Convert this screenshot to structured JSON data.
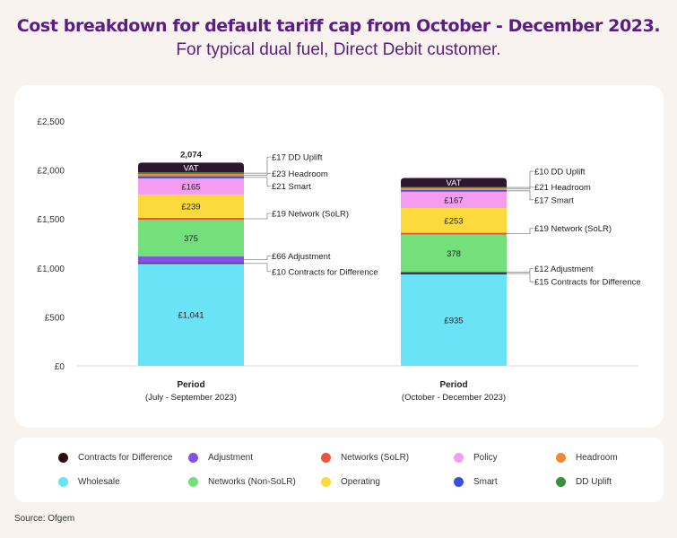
{
  "header": {
    "title": "Cost breakdown for default tariff cap from October - December 2023.",
    "subtitle": "For typical dual fuel, Direct Debit customer."
  },
  "chart_data": {
    "type": "bar",
    "stacked": true,
    "title": "Cost breakdown for default tariff cap from October - December 2023.",
    "subtitle": "For typical dual fuel, Direct Debit customer.",
    "ylim": [
      0,
      2500
    ],
    "yticks": [
      0,
      500,
      1000,
      1500,
      2000,
      2500
    ],
    "ytick_labels": [
      "£0",
      "£500",
      "£1,000",
      "£1,500",
      "£2,000",
      "£2,500"
    ],
    "grid": false,
    "legend_position": "bottom",
    "categories": [
      {
        "label": "Period",
        "sublabel": "(July - September 2023)",
        "total_label": "2,074"
      },
      {
        "label": "Period",
        "sublabel": "(October - December 2023)",
        "total_label": ""
      }
    ],
    "series": [
      {
        "name": "Wholesale",
        "color": "#6be3f7",
        "values": [
          1041,
          935
        ],
        "inner_labels": [
          "£1,041",
          "£935"
        ]
      },
      {
        "name": "Contracts for Difference",
        "color": "#2a0f12",
        "values": [
          10,
          15
        ],
        "callouts": [
          "£10 Contracts for Difference",
          "£15 Contracts for Difference"
        ]
      },
      {
        "name": "Adjustment",
        "color": "#8352e0",
        "values": [
          66,
          12
        ],
        "callouts": [
          "£66 Adjustment",
          "£12 Adjustment"
        ]
      },
      {
        "name": "Networks (Non-SoLR)",
        "color": "#74e07c",
        "values": [
          375,
          378
        ],
        "inner_labels": [
          "375",
          "378"
        ]
      },
      {
        "name": "Networks (SoLR)",
        "color": "#e8553c",
        "values": [
          19,
          19
        ],
        "callouts": [
          "£19 Network (SoLR)",
          "£19 Network (SoLR)"
        ]
      },
      {
        "name": "Operating",
        "color": "#fcd93c",
        "values": [
          239,
          253
        ],
        "inner_labels": [
          "£239",
          "£253"
        ]
      },
      {
        "name": "Policy",
        "color": "#f39cf0",
        "values": [
          165,
          167
        ],
        "inner_labels": [
          "£165",
          "£167"
        ]
      },
      {
        "name": "Smart",
        "color": "#3a4fd6",
        "values": [
          21,
          17
        ],
        "callouts": [
          "£21 Smart",
          "£17 Smart"
        ]
      },
      {
        "name": "Headroom",
        "color": "#f5872e",
        "values": [
          23,
          21
        ],
        "callouts": [
          "£23 Headroom",
          "£21 Headroom"
        ]
      },
      {
        "name": "DD Uplift",
        "color": "#3a8f3a",
        "values": [
          17,
          10
        ],
        "callouts": [
          "£17 DD Uplift",
          "£10 DD Uplift"
        ]
      },
      {
        "name": "VAT",
        "color": "#2e1532",
        "values": [
          99,
          91
        ],
        "inner_labels": [
          "VAT",
          "VAT"
        ]
      }
    ]
  },
  "legend": {
    "items": [
      {
        "label": "Contracts for Difference",
        "color": "#2a0f12"
      },
      {
        "label": "Adjustment",
        "color": "#8352e0"
      },
      {
        "label": "Networks (SoLR)",
        "color": "#e8553c"
      },
      {
        "label": "Policy",
        "color": "#f39cf0"
      },
      {
        "label": "Headroom",
        "color": "#f5872e"
      },
      {
        "label": "Wholesale",
        "color": "#6be3f7"
      },
      {
        "label": "Networks (Non-SoLR)",
        "color": "#74e07c"
      },
      {
        "label": "Operating",
        "color": "#fcd93c"
      },
      {
        "label": "Smart",
        "color": "#3a4fd6"
      },
      {
        "label": "DD Uplift",
        "color": "#3a8f3a"
      }
    ]
  },
  "footer": {
    "source": "Source: Ofgem"
  }
}
